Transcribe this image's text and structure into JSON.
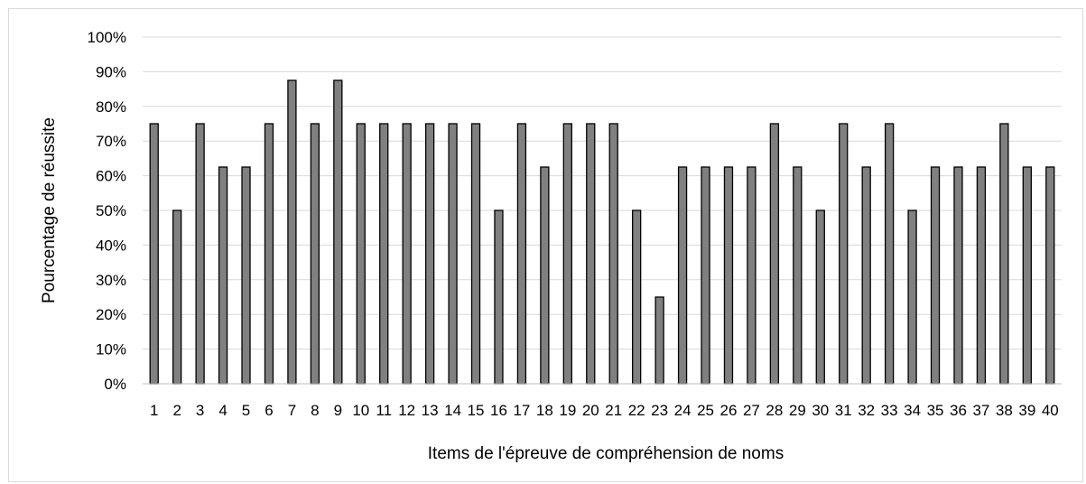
{
  "chart_data": {
    "type": "bar",
    "title": "",
    "xlabel": "Items de l'épreuve de compréhension de noms",
    "ylabel": "Pourcentage de réussite",
    "ylim": [
      0,
      100
    ],
    "ytick_step": 10,
    "ytick_suffix": "%",
    "grid": true,
    "legend": "none",
    "categories": [
      "1",
      "2",
      "3",
      "4",
      "5",
      "6",
      "7",
      "8",
      "9",
      "10",
      "11",
      "12",
      "13",
      "14",
      "15",
      "16",
      "17",
      "18",
      "19",
      "20",
      "21",
      "22",
      "23",
      "24",
      "25",
      "26",
      "27",
      "28",
      "29",
      "30",
      "31",
      "32",
      "33",
      "34",
      "35",
      "36",
      "37",
      "38",
      "39",
      "40"
    ],
    "series": [
      {
        "values": [
          75,
          50,
          75,
          62.5,
          62.5,
          75,
          87.5,
          75,
          87.5,
          75,
          75,
          75,
          75,
          75,
          75,
          50,
          75,
          62.5,
          75,
          75,
          75,
          50,
          25,
          62.5,
          62.5,
          62.5,
          62.5,
          75,
          62.5,
          50,
          75,
          62.5,
          75,
          50,
          62.5,
          62.5,
          62.5,
          75,
          62.5,
          62.5
        ],
        "color": "#808080"
      }
    ],
    "colors": {
      "bar_fill": "#808080",
      "bar_stroke": "#000000",
      "gridline": "#d9d9d9",
      "axis": "#bfbfbf"
    }
  }
}
